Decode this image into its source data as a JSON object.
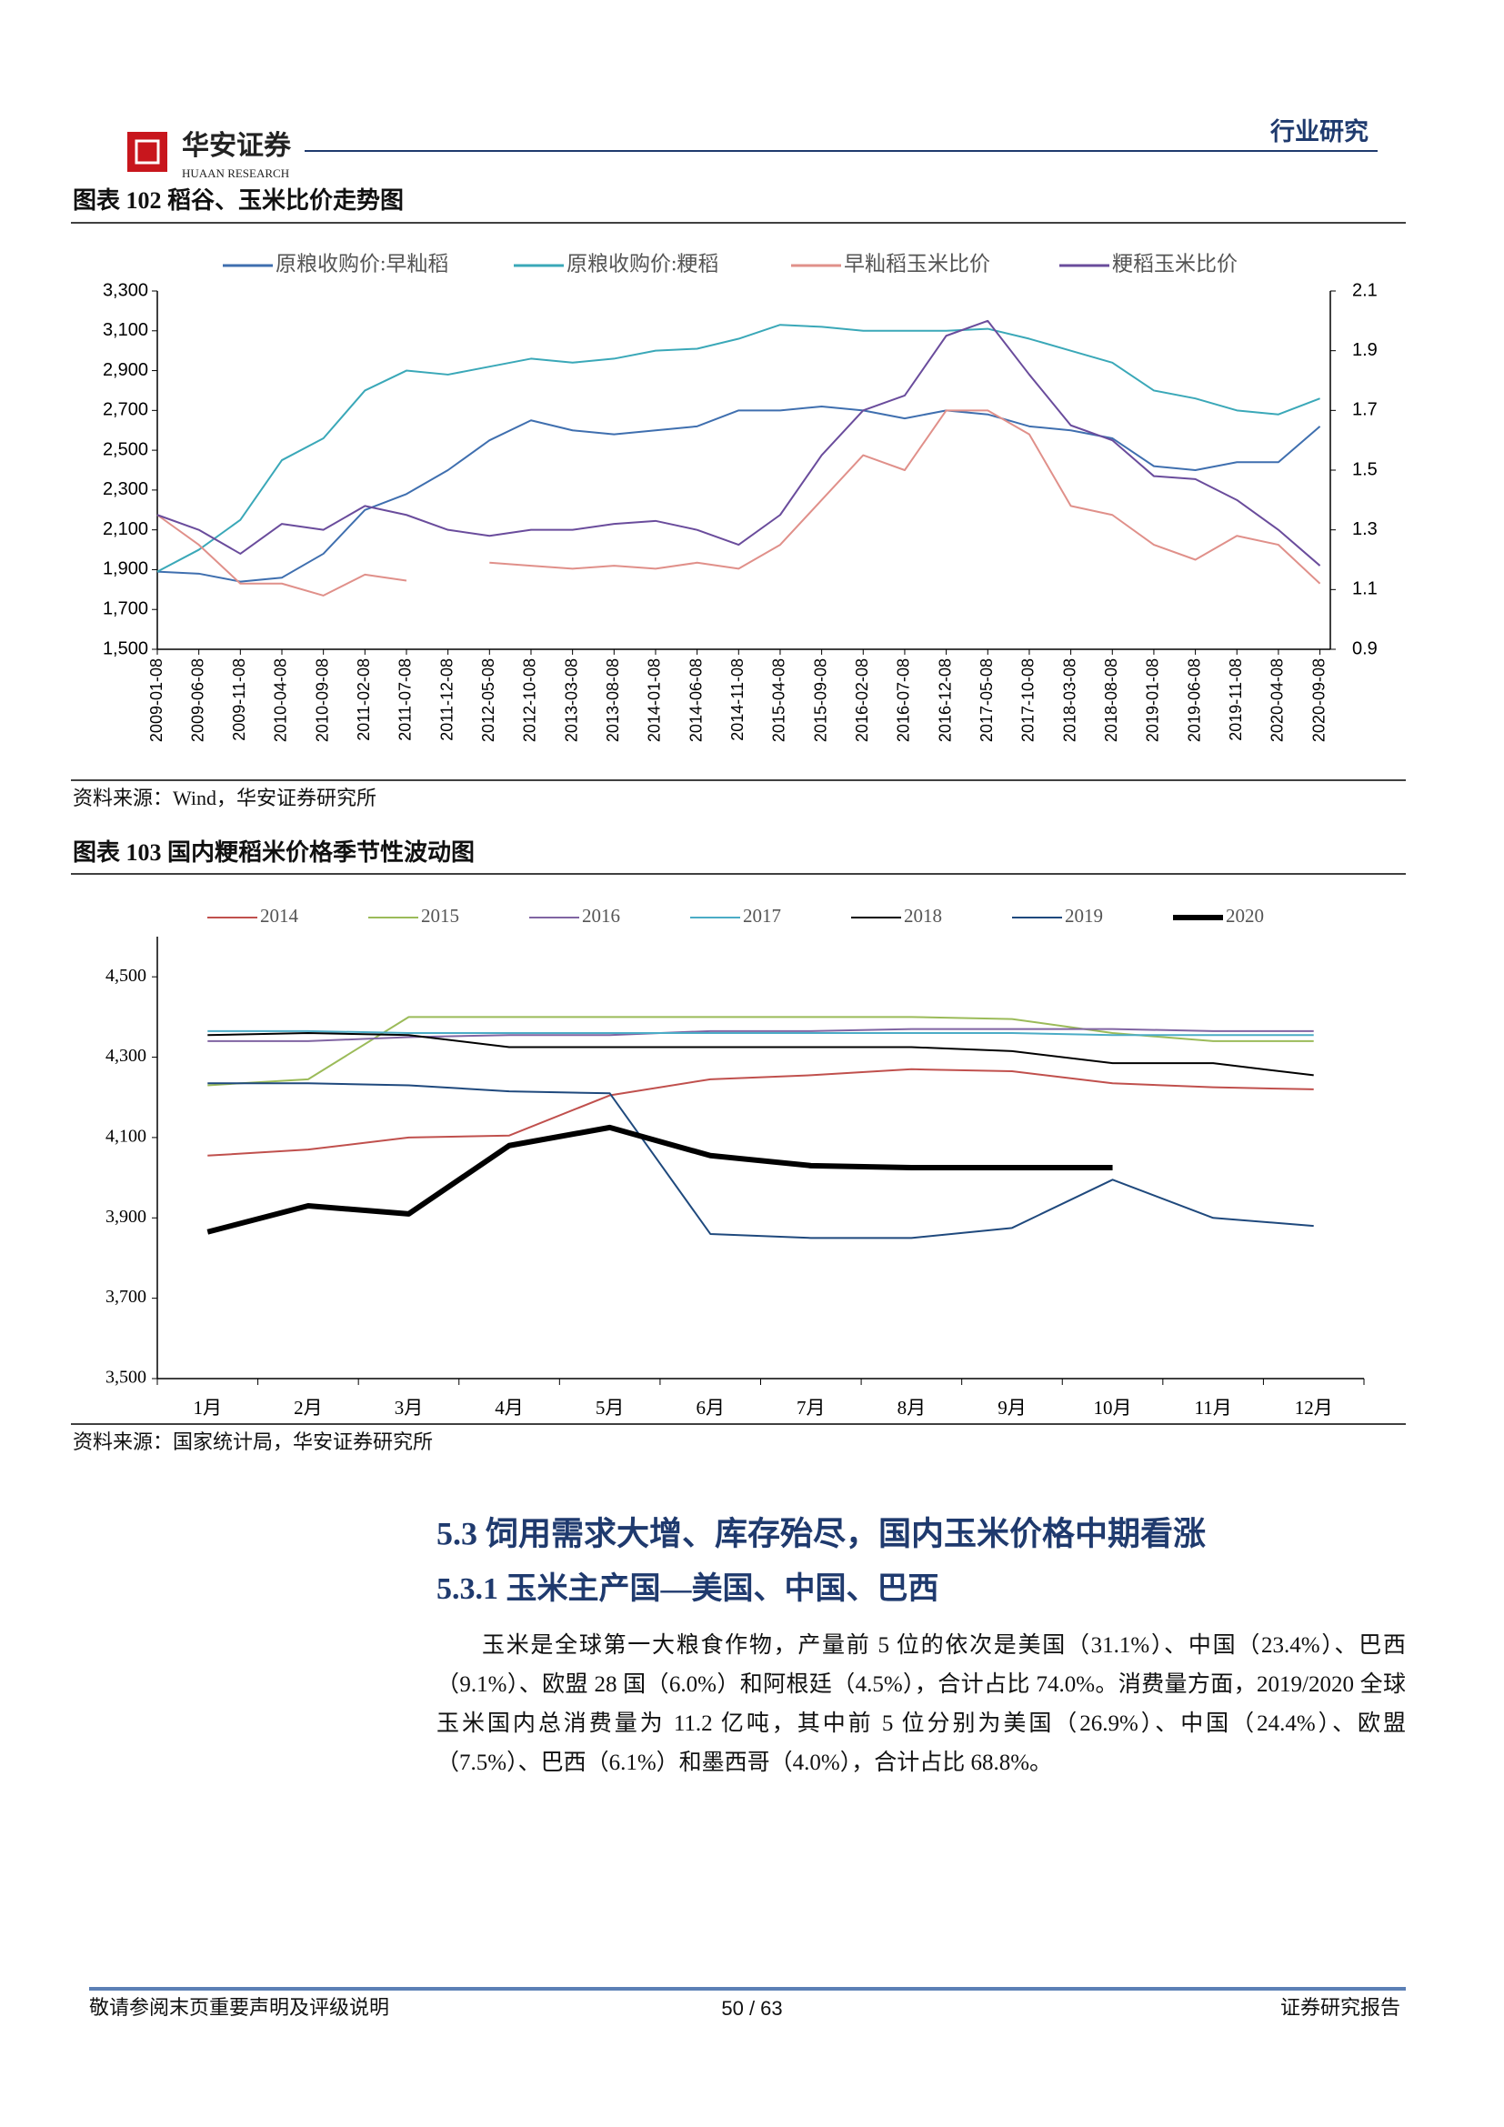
{
  "header": {
    "logo_text": "华安证券",
    "logo_subtext": "HUAAN RESEARCH",
    "category": "行业研究"
  },
  "chart_data": [
    {
      "type": "line",
      "title": "图表 102 稻谷、玉米比价走势图",
      "x": [
        "2009-01-08",
        "2009-06-08",
        "2009-11-08",
        "2010-04-08",
        "2010-09-08",
        "2011-02-08",
        "2011-07-08",
        "2011-12-08",
        "2012-05-08",
        "2012-10-08",
        "2013-03-08",
        "2013-08-08",
        "2014-01-08",
        "2014-06-08",
        "2014-11-08",
        "2015-04-08",
        "2015-09-08",
        "2016-02-08",
        "2016-07-08",
        "2016-12-08",
        "2017-05-08",
        "2017-10-08",
        "2018-03-08",
        "2018-08-08",
        "2019-01-08",
        "2019-06-08",
        "2019-11-08",
        "2020-04-08",
        "2020-09-08"
      ],
      "series": [
        {
          "name": "原粮收购价:早籼稻",
          "color": "#3f6faf",
          "axis": "y",
          "values": [
            1890,
            1880,
            1840,
            1860,
            1980,
            2200,
            2280,
            2400,
            2550,
            2650,
            2600,
            2580,
            2600,
            2620,
            2700,
            2700,
            2720,
            2700,
            2660,
            2700,
            2680,
            2620,
            2600,
            2560,
            2420,
            2400,
            2440,
            2440,
            2620
          ]
        },
        {
          "name": "原粮收购价:粳稻",
          "color": "#3aa8b8",
          "axis": "y",
          "values": [
            1890,
            2000,
            2150,
            2450,
            2560,
            2800,
            2900,
            2880,
            2920,
            2960,
            2940,
            2960,
            3000,
            3010,
            3060,
            3130,
            3120,
            3100,
            3100,
            3100,
            3110,
            3060,
            3000,
            2940,
            2800,
            2760,
            2700,
            2680,
            2760
          ]
        },
        {
          "name": "早籼稻玉米比价",
          "color": "#e0908a",
          "axis": "y2",
          "values": [
            1.35,
            1.25,
            1.12,
            1.12,
            1.08,
            1.15,
            1.13,
            null,
            1.19,
            1.18,
            1.17,
            1.18,
            1.17,
            1.19,
            1.17,
            1.25,
            1.4,
            1.55,
            1.5,
            1.7,
            1.7,
            1.62,
            1.38,
            1.35,
            1.25,
            1.2,
            1.28,
            1.25,
            1.12
          ]
        },
        {
          "name": "粳稻玉米比价",
          "color": "#6a4c9c",
          "axis": "y2",
          "values": [
            1.35,
            1.3,
            1.22,
            1.32,
            1.3,
            1.38,
            1.35,
            1.3,
            1.28,
            1.3,
            1.3,
            1.32,
            1.33,
            1.3,
            1.25,
            1.35,
            1.55,
            1.7,
            1.75,
            1.95,
            2.0,
            1.82,
            1.65,
            1.6,
            1.48,
            1.47,
            1.4,
            1.3,
            1.18
          ]
        }
      ],
      "ylim": [
        1500,
        3300
      ],
      "yticks": [
        {
          "value": 1500,
          "label": "1,500"
        },
        {
          "value": 1700,
          "label": "1,700"
        },
        {
          "value": 1900,
          "label": "1,900"
        },
        {
          "value": 2100,
          "label": "2,100"
        },
        {
          "value": 2300,
          "label": "2,300"
        },
        {
          "value": 2500,
          "label": "2,500"
        },
        {
          "value": 2700,
          "label": "2,700"
        },
        {
          "value": 2900,
          "label": "2,900"
        },
        {
          "value": 3100,
          "label": "3,100"
        },
        {
          "value": 3300,
          "label": "3,300"
        }
      ],
      "y2lim": [
        0.9,
        2.1
      ],
      "y2ticks": [
        0.9,
        1.1,
        1.3,
        1.5,
        1.7,
        1.9,
        2.1
      ],
      "source": "资料来源：Wind，华安证券研究所"
    },
    {
      "type": "line",
      "title": "图表 103 国内粳稻米价格季节性波动图",
      "categories": [
        "1月",
        "2月",
        "3月",
        "4月",
        "5月",
        "6月",
        "7月",
        "8月",
        "9月",
        "10月",
        "11月",
        "12月"
      ],
      "series": [
        {
          "name": "2014",
          "color": "#c0504d",
          "linewidth": 2,
          "values": [
            4055,
            4070,
            4100,
            4105,
            4205,
            4245,
            4255,
            4270,
            4265,
            4235,
            4225,
            4220
          ]
        },
        {
          "name": "2015",
          "color": "#9bbb59",
          "linewidth": 2,
          "values": [
            4230,
            4245,
            4400,
            4400,
            4400,
            4400,
            4400,
            4400,
            4395,
            4360,
            4340,
            4340
          ]
        },
        {
          "name": "2016",
          "color": "#8064a2",
          "linewidth": 2,
          "values": [
            4340,
            4340,
            4350,
            4355,
            4355,
            4365,
            4365,
            4370,
            4370,
            4370,
            4365,
            4365
          ]
        },
        {
          "name": "2017",
          "color": "#4bacc6",
          "linewidth": 2,
          "values": [
            4365,
            4365,
            4360,
            4360,
            4360,
            4360,
            4360,
            4360,
            4360,
            4355,
            4355,
            4355
          ]
        },
        {
          "name": "2018",
          "color": "#000000",
          "linewidth": 2,
          "values": [
            4355,
            4360,
            4355,
            4325,
            4325,
            4325,
            4325,
            4325,
            4315,
            4285,
            4285,
            4255
          ]
        },
        {
          "name": "2019",
          "color": "#1f497d",
          "linewidth": 2,
          "values": [
            4235,
            4235,
            4230,
            4215,
            4210,
            3860,
            3850,
            3850,
            3875,
            3995,
            3900,
            3880
          ]
        },
        {
          "name": "2020",
          "color": "#000000",
          "linewidth": 6,
          "values": [
            3865,
            3930,
            3910,
            4080,
            4125,
            4055,
            4030,
            4025,
            4025,
            4025,
            null,
            null
          ]
        }
      ],
      "ylim": [
        3500,
        4600
      ],
      "yticks": [
        {
          "value": 3500,
          "label": "3,500"
        },
        {
          "value": 3700,
          "label": "3,700"
        },
        {
          "value": 3900,
          "label": "3,900"
        },
        {
          "value": 4100,
          "label": "4,100"
        },
        {
          "value": 4300,
          "label": "4,300"
        },
        {
          "value": 4500,
          "label": "4,500"
        }
      ],
      "source": "资料来源：国家统计局，华安证券研究所"
    }
  ],
  "section": {
    "heading": "5.3 饲用需求大增、库存殆尽，国内玉米价格中期看涨",
    "subheading": "5.3.1 玉米主产国—美国、中国、巴西",
    "paragraph": "玉米是全球第一大粮食作物，产量前 5 位的依次是美国（31.1%）、中国（23.4%）、巴西（9.1%）、欧盟 28 国（6.0%）和阿根廷（4.5%），合计占比 74.0%。消费量方面，2019/2020 全球玉米国内总消费量为 11.2 亿吨，其中前 5 位分别为美国（26.9%）、中国（24.4%）、欧盟（7.5%）、巴西（6.1%）和墨西哥（4.0%），合计占比 68.8%。"
  },
  "footer": {
    "disclaimer": "敬请参阅末页重要声明及评级说明",
    "page": "50 / 63",
    "report_type": "证券研究报告"
  }
}
